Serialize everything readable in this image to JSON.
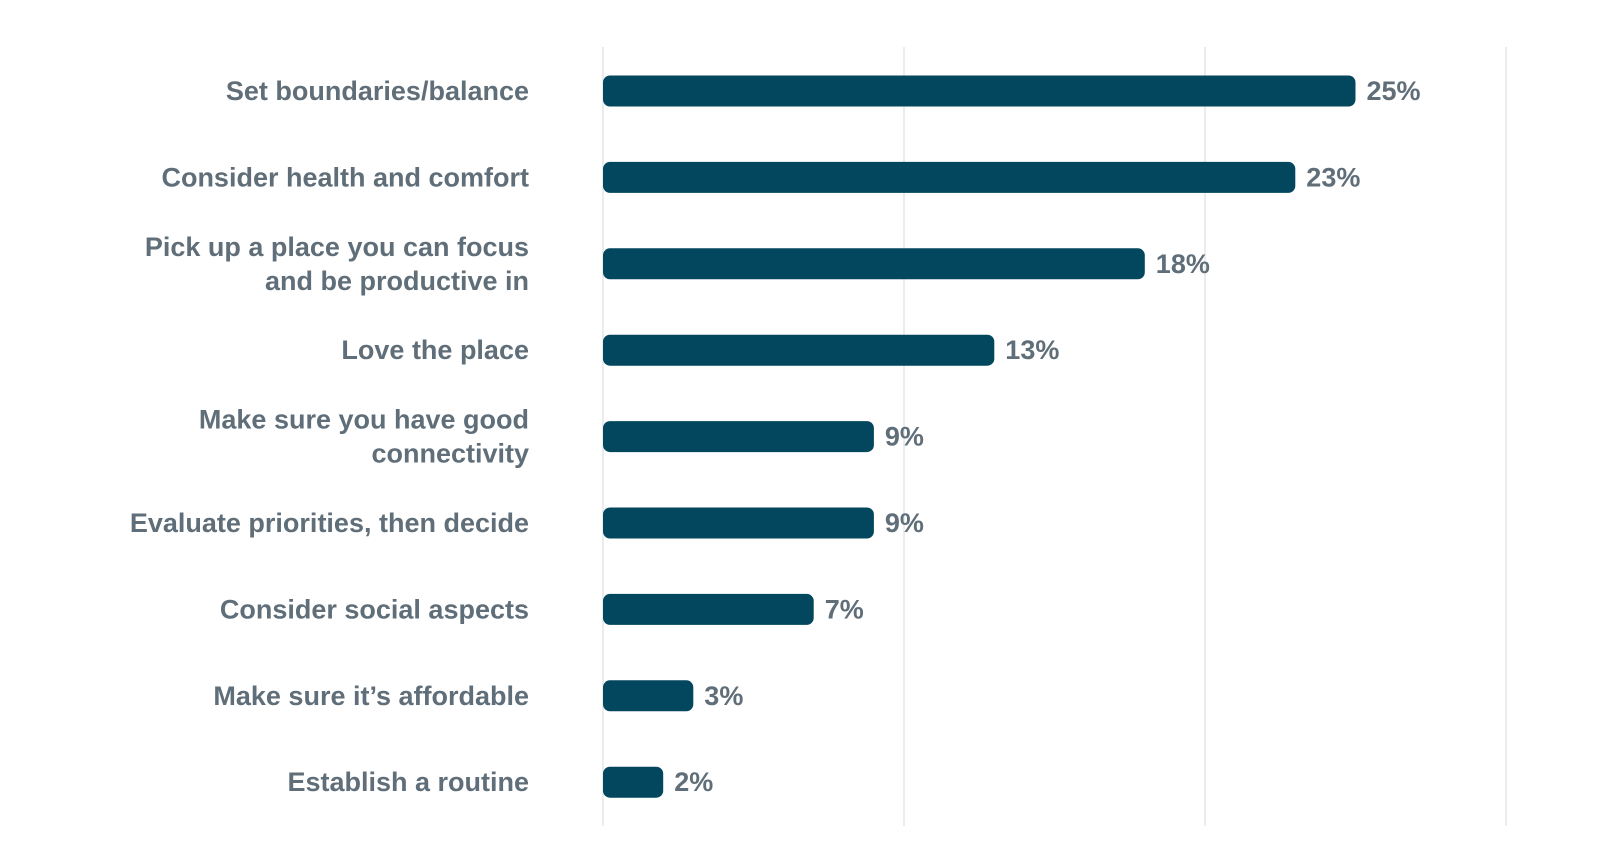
{
  "chart_data": {
    "type": "bar",
    "orientation": "horizontal",
    "title": "",
    "xlabel": "",
    "ylabel": "",
    "categories": [
      [
        "Set boundaries/balance"
      ],
      [
        "Consider health and comfort"
      ],
      [
        "Pick up a place you can focus",
        "and be productive in"
      ],
      [
        "Love the place"
      ],
      [
        "Make sure you have good",
        "connectivity"
      ],
      [
        "Evaluate priorities, then decide"
      ],
      [
        "Consider social aspects"
      ],
      [
        "Make sure it’s affordable"
      ],
      [
        "Establish a routine"
      ]
    ],
    "values": [
      25,
      23,
      18,
      13,
      9,
      9,
      7,
      3,
      2
    ],
    "value_labels": [
      "25%",
      "23%",
      "18%",
      "13%",
      "9%",
      "9%",
      "7%",
      "3%",
      "2%"
    ],
    "xlim": [
      0,
      30
    ],
    "grid_values": [
      0,
      10,
      20,
      30
    ],
    "grid": true,
    "legend": "none",
    "colors": {
      "bar": "#02475e",
      "label": "#5f6e78",
      "grid": "#e3e6e8"
    }
  }
}
